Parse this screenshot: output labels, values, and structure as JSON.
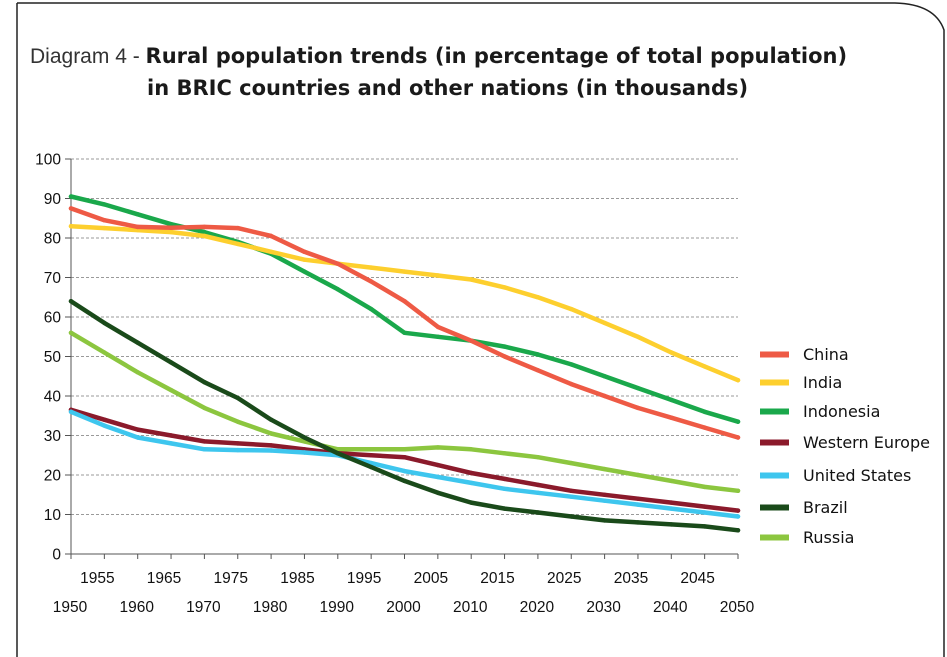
{
  "title_prefix": "Diagram 4 - ",
  "title_line1": "Rural population trends (in percentage of total population)",
  "title_line2": "in BRIC countries and other nations (in thousands)",
  "chart_data": {
    "type": "line",
    "title": "Diagram 4 - Rural population trends (in percentage of total population) in BRIC countries and other nations (in thousands)",
    "xlabel": "",
    "ylabel": "",
    "x": [
      1950,
      1955,
      1960,
      1965,
      1970,
      1975,
      1980,
      1985,
      1990,
      1995,
      2000,
      2005,
      2010,
      2015,
      2020,
      2025,
      2030,
      2035,
      2040,
      2045,
      2050
    ],
    "x_tick_labels_top": [
      "1955",
      "1965",
      "1975",
      "1985",
      "1995",
      "2005",
      "2015",
      "2025",
      "2035",
      "2045"
    ],
    "x_tick_labels_bottom": [
      "1950",
      "1960",
      "1970",
      "1980",
      "1990",
      "2000",
      "2010",
      "2020",
      "2030",
      "2040",
      "2050"
    ],
    "ylim": [
      0,
      100
    ],
    "yticks": [
      0,
      10,
      20,
      30,
      40,
      50,
      60,
      70,
      80,
      90,
      100
    ],
    "grid": "horizontal dashed",
    "legend_position": "right",
    "series": [
      {
        "name": "China",
        "color": "#ee5a45",
        "values": [
          87.5,
          84.5,
          82.8,
          82.6,
          82.8,
          82.5,
          80.5,
          76.5,
          73.5,
          69.0,
          64.0,
          57.5,
          54.0,
          50.0,
          46.5,
          43.0,
          40.0,
          37.0,
          34.5,
          32.0,
          29.5
        ]
      },
      {
        "name": "India",
        "color": "#fdcf2e",
        "values": [
          83.0,
          82.5,
          82.0,
          81.5,
          80.5,
          78.5,
          76.5,
          74.5,
          73.5,
          72.5,
          71.5,
          70.5,
          69.5,
          67.5,
          65.0,
          62.0,
          58.5,
          55.0,
          51.0,
          47.5,
          44.0
        ]
      },
      {
        "name": "Indonesia",
        "color": "#1aa84b",
        "values": [
          90.5,
          88.5,
          86.0,
          83.5,
          81.5,
          79.0,
          76.0,
          71.5,
          67.0,
          62.0,
          56.0,
          55.0,
          54.0,
          52.5,
          50.5,
          48.0,
          45.0,
          42.0,
          39.0,
          36.0,
          33.5
        ]
      },
      {
        "name": "Western Europe",
        "color": "#8b1a2b",
        "values": [
          36.5,
          34.0,
          31.5,
          30.0,
          28.5,
          28.0,
          27.5,
          26.5,
          25.5,
          25.0,
          24.5,
          22.5,
          20.5,
          19.0,
          17.5,
          16.0,
          15.0,
          14.0,
          13.0,
          12.0,
          11.0
        ]
      },
      {
        "name": "United States",
        "color": "#3ec6ee",
        "values": [
          36.0,
          32.5,
          29.5,
          28.0,
          26.5,
          26.3,
          26.2,
          25.7,
          25.0,
          23.0,
          21.0,
          19.5,
          18.0,
          16.5,
          15.5,
          14.5,
          13.5,
          12.5,
          11.5,
          10.5,
          9.5
        ]
      },
      {
        "name": "Brazil",
        "color": "#1a4a1a",
        "values": [
          64.0,
          58.5,
          53.5,
          48.5,
          43.5,
          39.5,
          34.0,
          29.5,
          25.5,
          22.0,
          18.5,
          15.5,
          13.0,
          11.5,
          10.5,
          9.5,
          8.5,
          8.0,
          7.5,
          7.0,
          6.0
        ]
      },
      {
        "name": "Russia",
        "color": "#8cc63f",
        "values": [
          56.0,
          51.0,
          46.0,
          41.5,
          37.0,
          33.5,
          30.5,
          28.5,
          26.5,
          26.5,
          26.5,
          27.0,
          26.5,
          25.5,
          24.5,
          23.0,
          21.5,
          20.0,
          18.5,
          17.0,
          16.0
        ]
      }
    ]
  }
}
